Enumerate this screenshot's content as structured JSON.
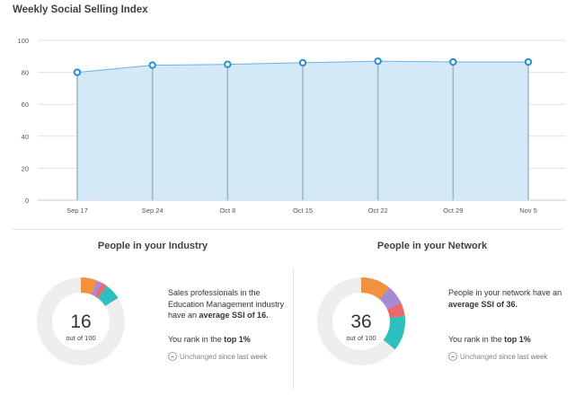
{
  "title": "Weekly Social Selling Index",
  "chart_data": [
    {
      "type": "area",
      "title": "Weekly Social Selling Index",
      "categories": [
        "Sep 17",
        "Sep 24",
        "Oct 8",
        "Oct 15",
        "Oct 22",
        "Oct 29",
        "Nov 5"
      ],
      "values": [
        80,
        84.5,
        85,
        86,
        87,
        86.5,
        86.5
      ],
      "ylim": [
        0,
        100
      ],
      "yticks": [
        0,
        20,
        40,
        60,
        80,
        100
      ],
      "grid": true,
      "colors": {
        "line": "#6ab4e0",
        "fill": "#d3e9f8",
        "marker": "#2a8fd0",
        "drop": "#9ab6c8"
      }
    },
    {
      "type": "pie",
      "title": "People in your Industry",
      "total": 100,
      "score": 16,
      "slices": [
        {
          "value": 6,
          "color": "#f2923f"
        },
        {
          "value": 2,
          "color": "#a68ad6"
        },
        {
          "value": 2,
          "color": "#e96a6a"
        },
        {
          "value": 6,
          "color": "#2fbfbf"
        }
      ],
      "remainder_color": "#eeeeee"
    },
    {
      "type": "pie",
      "title": "People in your Network",
      "total": 100,
      "score": 36,
      "slices": [
        {
          "value": 11,
          "color": "#f2923f"
        },
        {
          "value": 7,
          "color": "#a68ad6"
        },
        {
          "value": 5,
          "color": "#e96a6a"
        },
        {
          "value": 13,
          "color": "#2fbfbf"
        }
      ],
      "remainder_color": "#eeeeee"
    }
  ],
  "industry": {
    "heading": "People in your Industry",
    "score": "16",
    "out_of": "out of 100",
    "desc_pre": "Sales professionals in the Education Management industry have an ",
    "desc_bold": "average SSI of 16.",
    "rank_pre": "You rank in the ",
    "rank_bold": "top 1%",
    "status_muted": "Unchanged",
    "status_rest": " since last week"
  },
  "network": {
    "heading": "People in your Network",
    "score": "36",
    "out_of": "out of 100",
    "desc_pre": "People in your network have an ",
    "desc_bold": "average SSI of 36.",
    "rank_pre": "You rank in the ",
    "rank_bold": "top 1%",
    "status_muted": "Unchanged",
    "status_rest": " since last week"
  }
}
